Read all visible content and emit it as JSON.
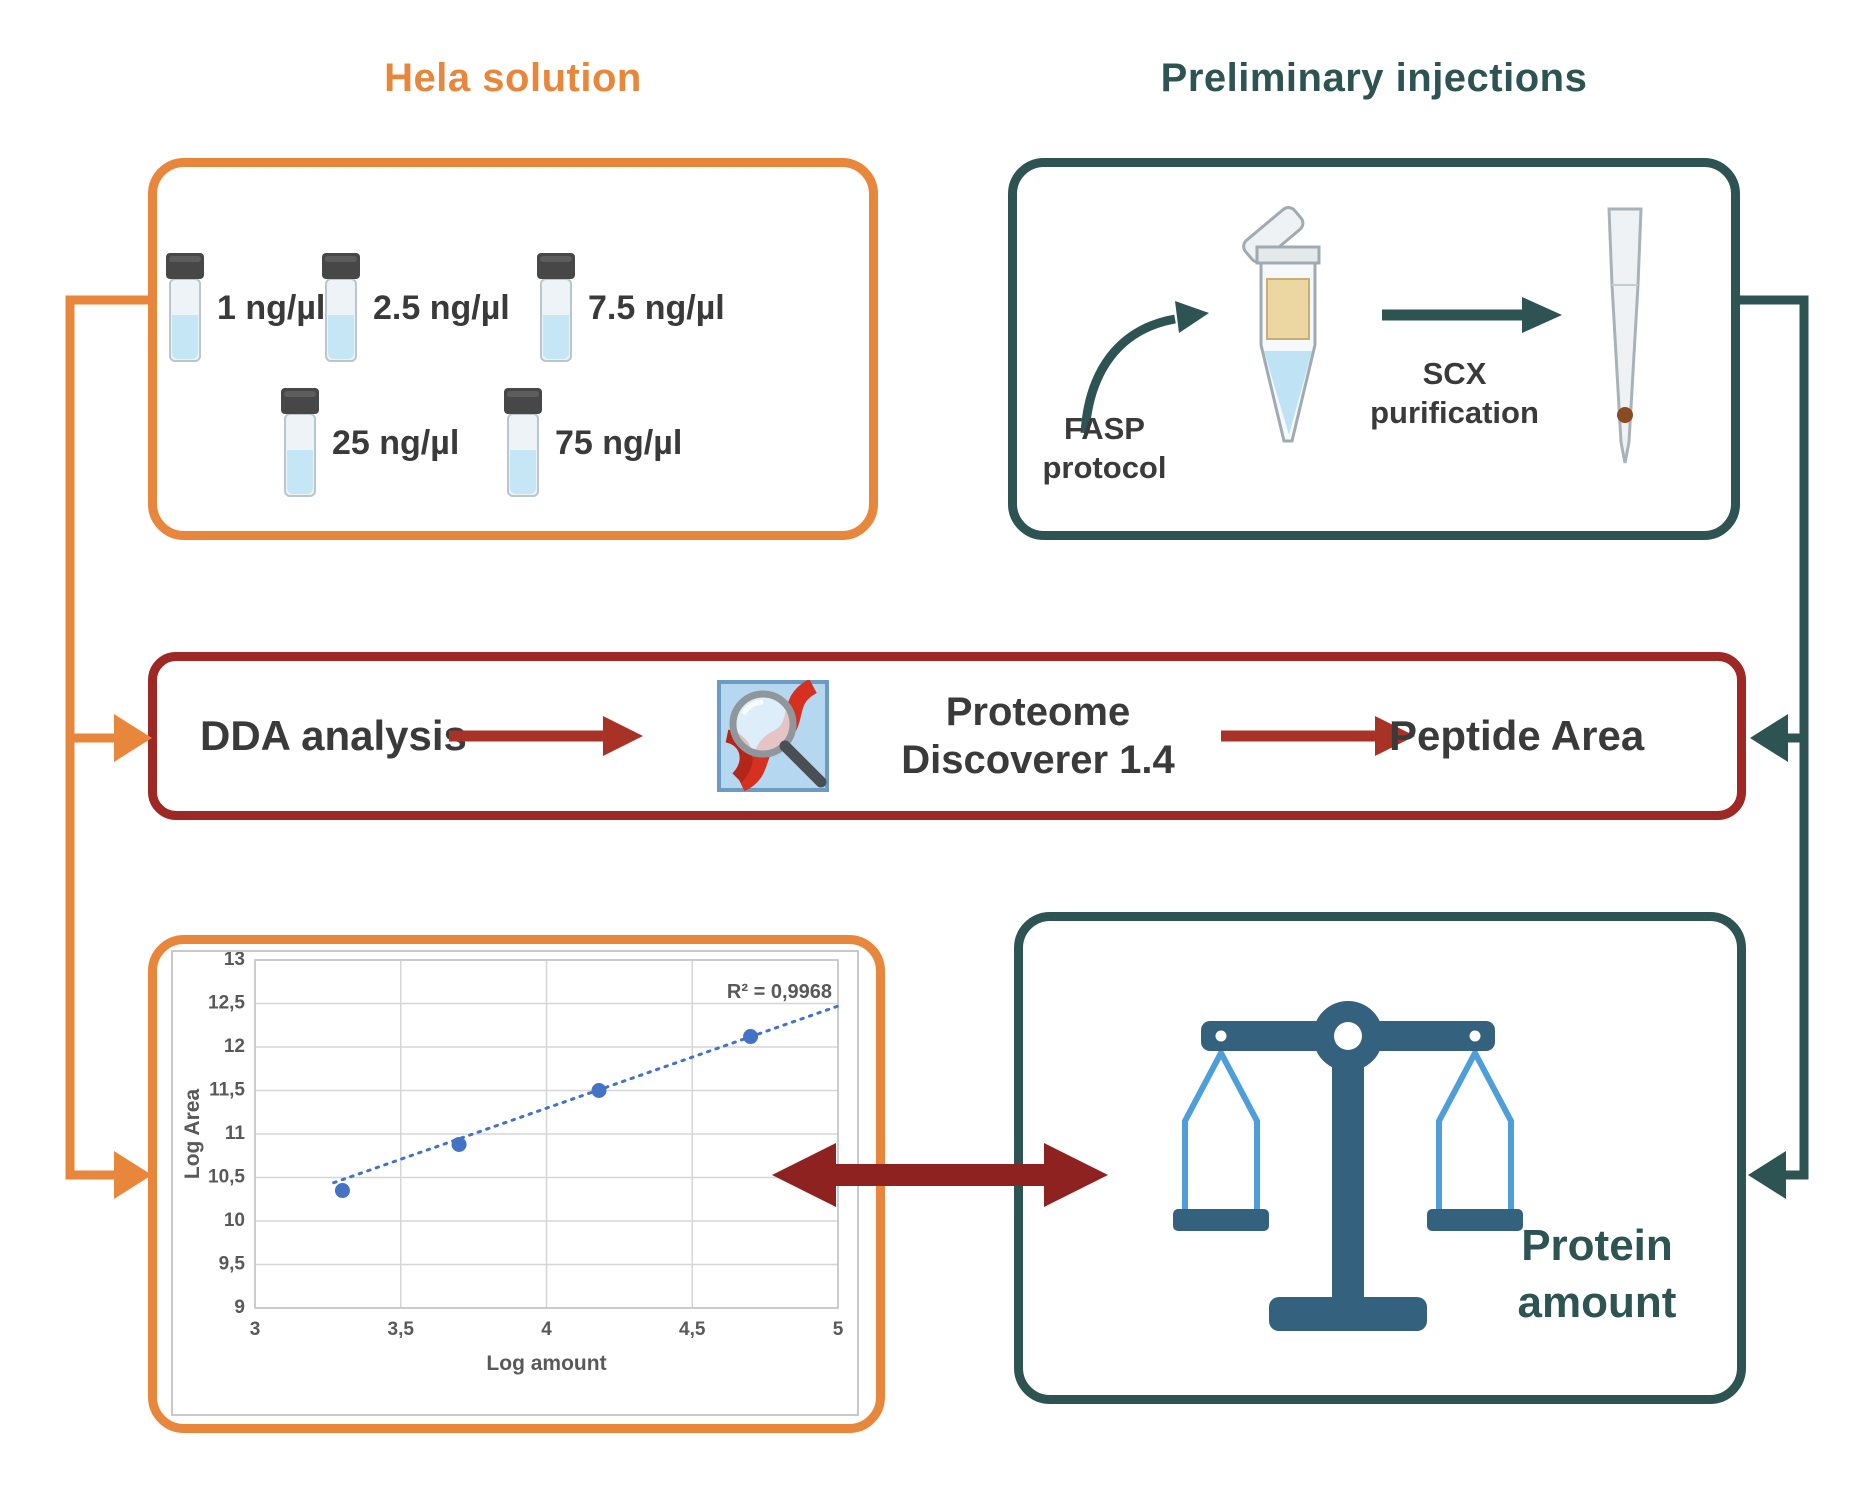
{
  "hela": {
    "title": "Hela solution",
    "vials": [
      {
        "label": "1 ng/µl"
      },
      {
        "label": "2.5 ng/µl"
      },
      {
        "label": "7.5 ng/µl"
      },
      {
        "label": "25 ng/µl"
      },
      {
        "label": "75 ng/µl"
      }
    ]
  },
  "preliminary": {
    "title": "Preliminary injections",
    "fasp_label": "FASP protocol",
    "scx_label": "SCX purification"
  },
  "analysis": {
    "dda_label": "DDA analysis",
    "software_label": "Proteome Discoverer 1.4",
    "result_label": "Peptide Area"
  },
  "protein": {
    "label": "Protein amount"
  },
  "chart_data": {
    "type": "scatter",
    "title": "",
    "xlabel": "Log amount",
    "ylabel": "Log Area",
    "xlim": [
      3,
      5
    ],
    "ylim": [
      9,
      13
    ],
    "grid": true,
    "legend": "none",
    "x_tick_values": [
      3,
      3.5,
      4,
      4.5,
      5
    ],
    "x_tick_labels": [
      "3",
      "3,5",
      "4",
      "4,5",
      "5"
    ],
    "y_tick_values": [
      9,
      9.5,
      10,
      10.5,
      11,
      11.5,
      12,
      12.5,
      13
    ],
    "y_tick_labels": [
      "9",
      "9,5",
      "10",
      "10,5",
      "11",
      "11,5",
      "12",
      "12,5",
      "13"
    ],
    "points": [
      {
        "x": 3.3,
        "y": 10.35
      },
      {
        "x": 3.7,
        "y": 10.88
      },
      {
        "x": 4.18,
        "y": 11.5
      },
      {
        "x": 4.7,
        "y": 12.12
      }
    ],
    "trendline": {
      "x1": 3.27,
      "y1": 10.44,
      "x2": 5.0,
      "y2": 12.47,
      "style": "dotted"
    },
    "annotation": "R² = 0,9968",
    "point_color": "#4472C4"
  },
  "icons": {
    "vial": "sample-vial-icon",
    "tube": "microcentrifuge-tube-icon",
    "pipette": "pipette-tip-icon",
    "curved_arrow": "curved-arrow-icon",
    "software": "proteome-discoverer-icon",
    "balance": "balance-scale-icon"
  },
  "colors": {
    "orange": "#E8873B",
    "dark_teal": "#2E5353",
    "dark_red_border": "#9E2823",
    "arrow_red": "#A93226",
    "double_arrow_red": "#8E2220",
    "chart_blue": "#4472C4",
    "scale_steel_blue": "#34617E",
    "scale_light_blue": "#4D9ED9",
    "label_dark": "#3A3A3A",
    "chart_text_gray": "#595959",
    "vial_liquid": "#C5E6F5",
    "tube_insert": "#ECD7A2"
  }
}
